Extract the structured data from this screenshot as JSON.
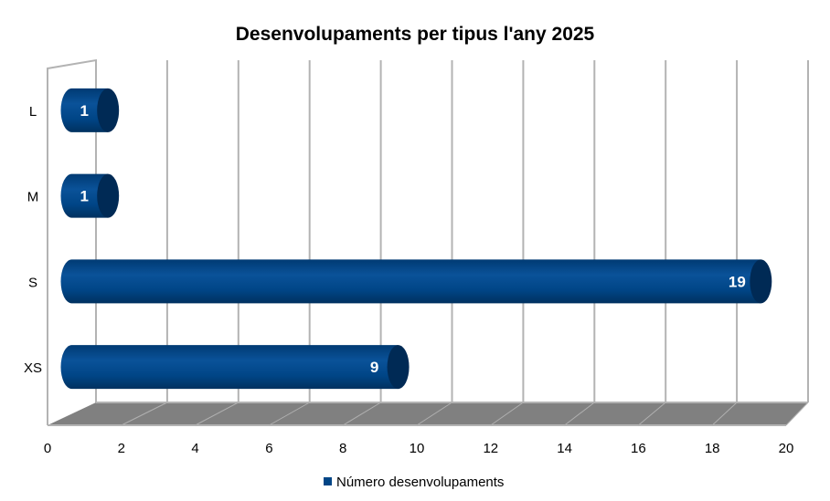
{
  "chart_data": {
    "type": "bar",
    "orientation": "horizontal",
    "style": "3d-cylinder",
    "title": "Desenvolupaments per tipus l'any 2025",
    "categories": [
      "L",
      "M",
      "S",
      "XS"
    ],
    "series": [
      {
        "name": "Número desenvolupaments",
        "values": [
          1,
          1,
          19,
          9
        ],
        "color": "#004586"
      }
    ],
    "xlim": [
      0,
      20
    ],
    "xticks": [
      "0",
      "2",
      "4",
      "6",
      "8",
      "10",
      "12",
      "14",
      "16",
      "18",
      "20"
    ],
    "grid": true,
    "data_labels": true,
    "legend": "bottom",
    "colors": {
      "bar": "#004586",
      "bar_cap": "#002a55",
      "floor": "#808080",
      "grid": "#b3b3b3"
    }
  }
}
